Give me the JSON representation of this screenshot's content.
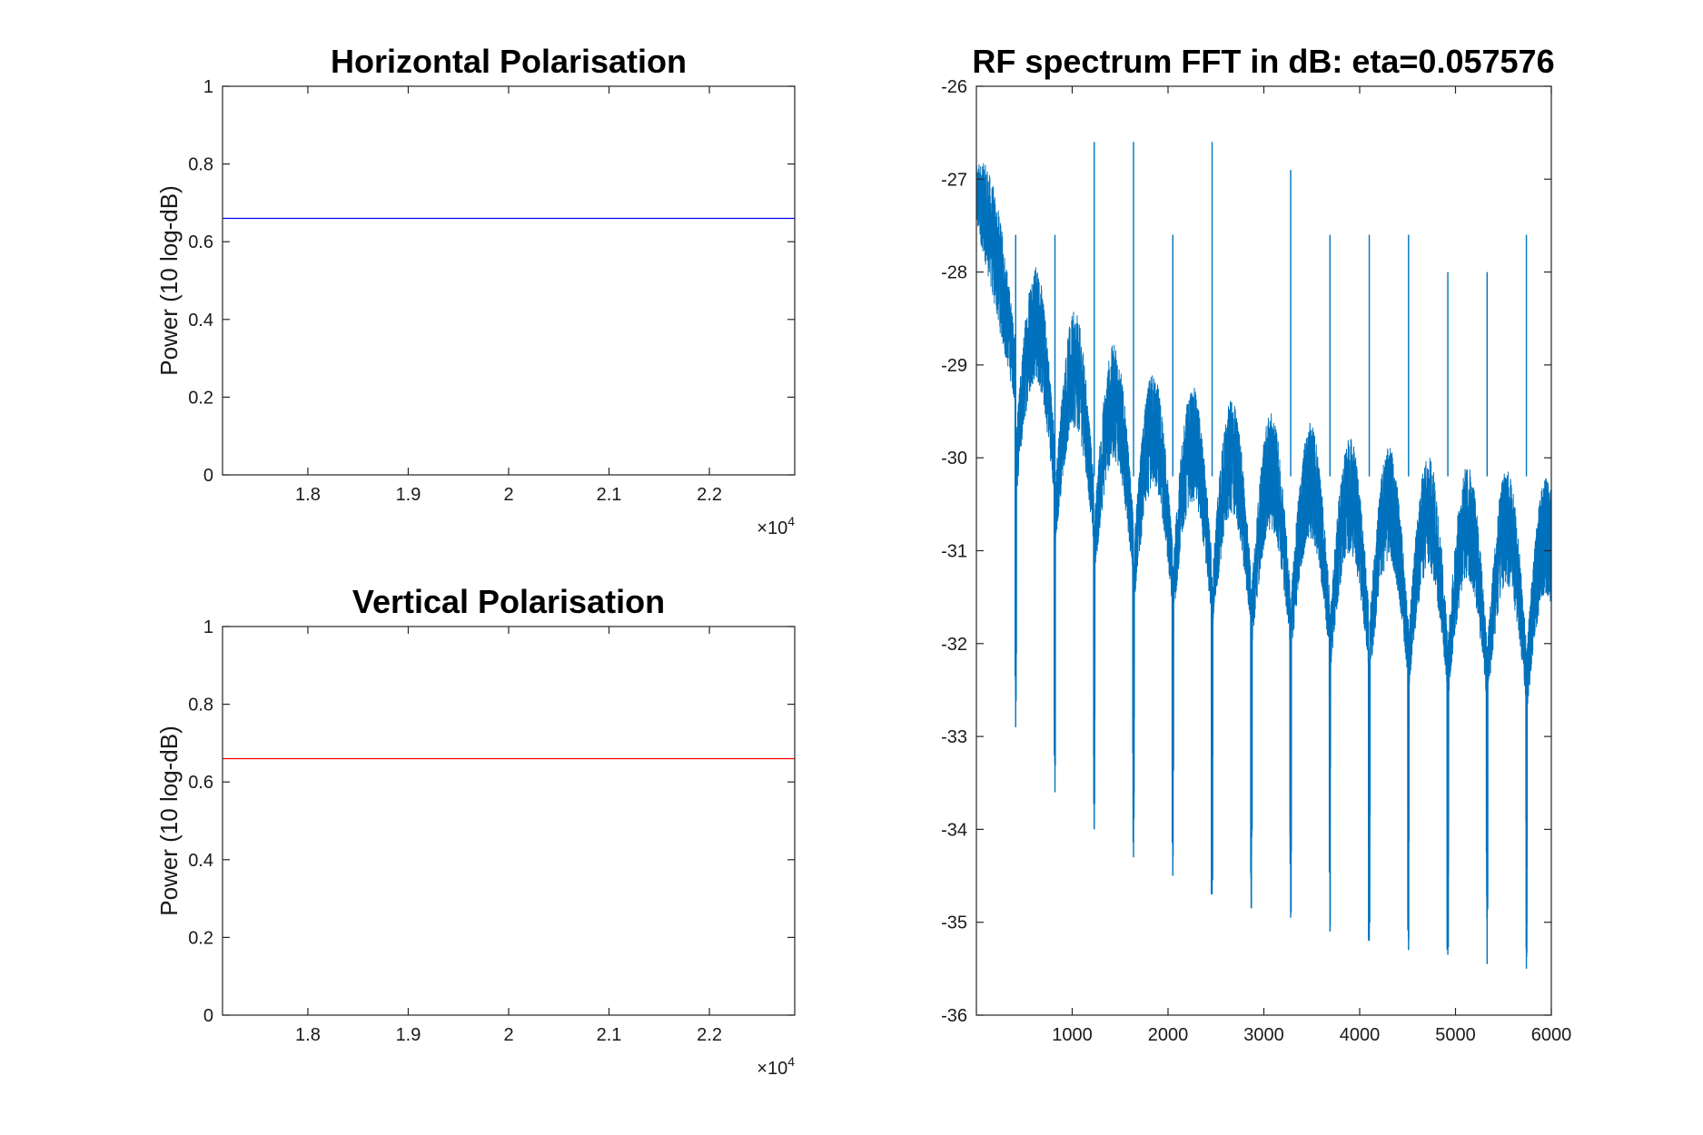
{
  "chart_data": [
    {
      "type": "line",
      "title": "Horizontal Polarisation",
      "ylabel": "Power (10 log-dB)",
      "xlabel": "",
      "xlim": [
        17150,
        22850
      ],
      "ylim": [
        0,
        1
      ],
      "x_ticks": [
        18000,
        19000,
        20000,
        21000,
        22000
      ],
      "x_tick_labels": [
        "1.8",
        "1.9",
        "2",
        "2.1",
        "2.2"
      ],
      "x_exponent_prefix": "×10",
      "x_exponent_power": "4",
      "y_ticks": [
        0,
        0.2,
        0.4,
        0.6,
        0.8,
        1
      ],
      "y_tick_labels": [
        "0",
        "0.2",
        "0.4",
        "0.6",
        "0.8",
        "1"
      ],
      "series": [
        {
          "color": "#0000ff",
          "x": [
            17150,
            22850
          ],
          "y": [
            0.66,
            0.66
          ]
        }
      ],
      "grid": false
    },
    {
      "type": "line",
      "title": "Vertical Polarisation",
      "ylabel": "Power (10 log-dB)",
      "xlabel": "",
      "xlim": [
        17150,
        22850
      ],
      "ylim": [
        0,
        1
      ],
      "x_ticks": [
        18000,
        19000,
        20000,
        21000,
        22000
      ],
      "x_tick_labels": [
        "1.8",
        "1.9",
        "2",
        "2.1",
        "2.2"
      ],
      "x_exponent_prefix": "×10",
      "x_exponent_power": "4",
      "y_ticks": [
        0,
        0.2,
        0.4,
        0.6,
        0.8,
        1
      ],
      "y_tick_labels": [
        "0",
        "0.2",
        "0.4",
        "0.6",
        "0.8",
        "1"
      ],
      "series": [
        {
          "color": "#ff0000",
          "x": [
            17150,
            22850
          ],
          "y": [
            0.66,
            0.66
          ]
        }
      ],
      "grid": false
    },
    {
      "type": "line",
      "title": "RF spectrum FFT in dB: eta=0.057576",
      "xlabel": "",
      "ylabel": "",
      "xlim": [
        0,
        6000
      ],
      "ylim": [
        -36,
        -26
      ],
      "x_ticks": [
        1000,
        2000,
        3000,
        4000,
        5000,
        6000
      ],
      "x_tick_labels": [
        "1000",
        "2000",
        "3000",
        "4000",
        "5000",
        "6000"
      ],
      "y_ticks": [
        -36,
        -35,
        -34,
        -33,
        -32,
        -31,
        -30,
        -29,
        -28,
        -27,
        -26
      ],
      "y_tick_labels": [
        "-36",
        "-35",
        "-34",
        "-33",
        "-32",
        "-31",
        "-30",
        "-29",
        "-28",
        "-27",
        "-26"
      ],
      "series": [
        {
          "color": "#0072bd",
          "lobes": [
            {
              "x_start": 0,
              "x_end": 410,
              "peak": -26.8
            },
            {
              "x_start": 410,
              "x_end": 820,
              "peak": -28.2
            },
            {
              "x_start": 820,
              "x_end": 1230,
              "peak": -28.7
            },
            {
              "x_start": 1230,
              "x_end": 1640,
              "peak": -29.05
            },
            {
              "x_start": 1640,
              "x_end": 2050,
              "peak": -29.35
            },
            {
              "x_start": 2050,
              "x_end": 2460,
              "peak": -29.5
            },
            {
              "x_start": 2460,
              "x_end": 2870,
              "peak": -29.65
            },
            {
              "x_start": 2870,
              "x_end": 3280,
              "peak": -29.8
            },
            {
              "x_start": 3280,
              "x_end": 3690,
              "peak": -29.9
            },
            {
              "x_start": 3690,
              "x_end": 4100,
              "peak": -30.05
            },
            {
              "x_start": 4100,
              "x_end": 4510,
              "peak": -30.15
            },
            {
              "x_start": 4510,
              "x_end": 4920,
              "peak": -30.25
            },
            {
              "x_start": 4920,
              "x_end": 5330,
              "peak": -30.35
            },
            {
              "x_start": 5330,
              "x_end": 5740,
              "peak": -30.4
            },
            {
              "x_start": 5740,
              "x_end": 6000,
              "peak": -30.5
            }
          ],
          "nulls": [
            {
              "x": 410,
              "y": -32.9
            },
            {
              "x": 820,
              "y": -33.6
            },
            {
              "x": 1230,
              "y": -34.0
            },
            {
              "x": 1640,
              "y": -34.3
            },
            {
              "x": 2050,
              "y": -34.5
            },
            {
              "x": 2460,
              "y": -34.7
            },
            {
              "x": 2870,
              "y": -34.85
            },
            {
              "x": 3280,
              "y": -34.95
            },
            {
              "x": 3690,
              "y": -35.1
            },
            {
              "x": 4100,
              "y": -35.2
            },
            {
              "x": 4510,
              "y": -35.3
            },
            {
              "x": 4920,
              "y": -35.35
            },
            {
              "x": 5330,
              "y": -35.45
            },
            {
              "x": 5740,
              "y": -35.5
            }
          ],
          "spikes": [
            {
              "x": 410,
              "y": -27.6
            },
            {
              "x": 820,
              "y": -27.6
            },
            {
              "x": 1230,
              "y": -26.6
            },
            {
              "x": 1640,
              "y": -26.6
            },
            {
              "x": 2050,
              "y": -27.6
            },
            {
              "x": 2460,
              "y": -26.6
            },
            {
              "x": 3280,
              "y": -26.9
            },
            {
              "x": 3690,
              "y": -27.6
            },
            {
              "x": 4100,
              "y": -27.6
            },
            {
              "x": 4510,
              "y": -27.6
            },
            {
              "x": 4920,
              "y": -28.0
            },
            {
              "x": 5330,
              "y": -28.0
            },
            {
              "x": 5740,
              "y": -27.6
            }
          ]
        }
      ],
      "grid": false
    }
  ]
}
